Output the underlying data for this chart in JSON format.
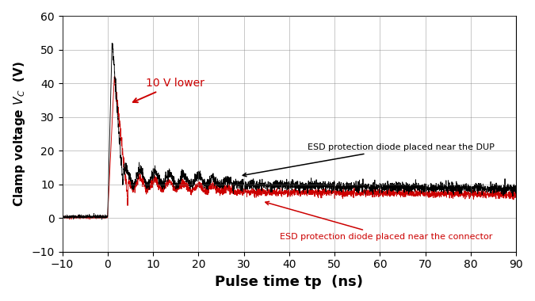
{
  "title": "",
  "xlabel": "Pulse time tp  (ns)",
  "ylabel_main": "Clamp voltage V",
  "ylabel_sub": "C",
  "ylabel_unit": "  (V)",
  "xlim": [
    -10,
    90
  ],
  "ylim": [
    -10,
    60
  ],
  "xticks": [
    -10,
    0,
    10,
    20,
    30,
    40,
    50,
    60,
    70,
    80,
    90
  ],
  "yticks": [
    -10,
    0,
    10,
    20,
    30,
    40,
    50,
    60
  ],
  "color_black": "#000000",
  "color_red": "#cc0000",
  "background": "#ffffff",
  "annotation_dup": "ESD protection diode placed near the DUP",
  "annotation_connector": "ESD protection diode placed near the connector",
  "annotation_10v": "10 V lower"
}
